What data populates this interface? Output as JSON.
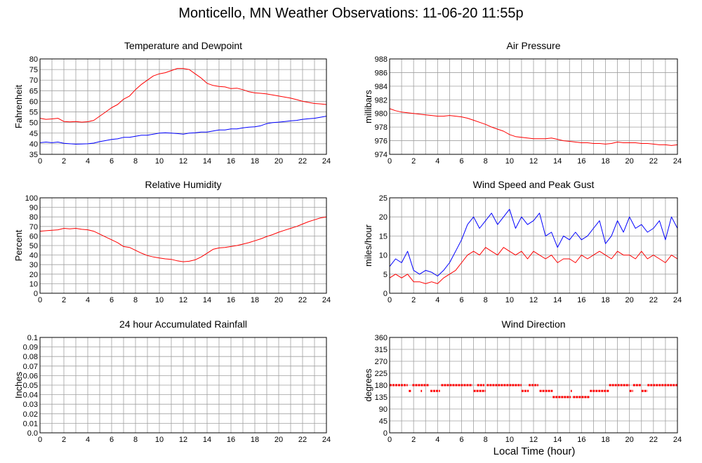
{
  "title": "Monticello, MN Weather Observations: 11-06-20 11:55p",
  "xlabel": "Local Time (hour)",
  "colors": {
    "red": "#ff0000",
    "blue": "#0000ff",
    "grid": "#a0a0a0"
  },
  "chart_data": [
    {
      "id": "temp",
      "type": "line",
      "title": "Temperature and Dewpoint",
      "ylabel": "Fahrenheit",
      "xlim": [
        0,
        24
      ],
      "ylim": [
        35,
        80
      ],
      "xticks": [
        0,
        2,
        4,
        6,
        8,
        10,
        12,
        14,
        16,
        18,
        20,
        22,
        24
      ],
      "yticks": [
        35,
        40,
        45,
        50,
        55,
        60,
        65,
        70,
        75,
        80
      ],
      "grid": true,
      "series": [
        {
          "color": "#ff0000",
          "x": [
            0,
            0.5,
            1,
            1.5,
            2,
            2.5,
            3,
            3.5,
            4,
            4.5,
            5,
            5.5,
            6,
            6.5,
            7,
            7.5,
            8,
            8.5,
            9,
            9.5,
            10,
            10.5,
            11,
            11.5,
            12,
            12.5,
            13,
            13.5,
            14,
            14.5,
            15,
            15.5,
            16,
            16.5,
            17,
            17.5,
            18,
            18.5,
            19,
            19.5,
            20,
            20.5,
            21,
            21.5,
            22,
            22.5,
            23,
            23.5,
            24
          ],
          "y": [
            52,
            51.5,
            51.7,
            52,
            50.5,
            50.3,
            50.5,
            50.2,
            50.4,
            51,
            53,
            55,
            57,
            58.5,
            61,
            62.5,
            65.5,
            68,
            70,
            72,
            73,
            73.5,
            74.5,
            75.5,
            75.5,
            75,
            73,
            71,
            68.5,
            67.5,
            67,
            66.8,
            66,
            66.2,
            65.5,
            64.5,
            64,
            63.8,
            63.5,
            63,
            62.5,
            62,
            61.5,
            60.8,
            60,
            59.5,
            59,
            58.8,
            58.5
          ]
        },
        {
          "color": "#0000ff",
          "x": [
            0,
            0.5,
            1,
            1.5,
            2,
            2.5,
            3,
            3.5,
            4,
            4.5,
            5,
            5.5,
            6,
            6.5,
            7,
            7.5,
            8,
            8.5,
            9,
            9.5,
            10,
            10.5,
            11,
            11.5,
            12,
            12.5,
            13,
            13.5,
            14,
            14.5,
            15,
            15.5,
            16,
            16.5,
            17,
            17.5,
            18,
            18.5,
            19,
            19.5,
            20,
            20.5,
            21,
            21.5,
            22,
            22.5,
            23,
            23.5,
            24
          ],
          "y": [
            40.5,
            40.8,
            40.5,
            40.8,
            40.2,
            40,
            39.8,
            39.9,
            40,
            40.3,
            41,
            41.5,
            42,
            42.3,
            43,
            43,
            43.5,
            44,
            44,
            44.5,
            45,
            45.2,
            45,
            44.8,
            44.5,
            45,
            45.2,
            45.5,
            45.5,
            46,
            46.5,
            46.5,
            47,
            47,
            47.5,
            47.8,
            48,
            48.5,
            49.5,
            50,
            50.2,
            50.5,
            50.8,
            51,
            51.5,
            51.8,
            52,
            52.5,
            53
          ]
        }
      ]
    },
    {
      "id": "pressure",
      "type": "line",
      "title": "Air Pressure",
      "ylabel": "millibars",
      "xlim": [
        0,
        24
      ],
      "ylim": [
        974,
        988
      ],
      "xticks": [
        0,
        2,
        4,
        6,
        8,
        10,
        12,
        14,
        16,
        18,
        20,
        22,
        24
      ],
      "yticks": [
        974,
        976,
        978,
        980,
        982,
        984,
        986,
        988
      ],
      "grid": true,
      "series": [
        {
          "color": "#ff0000",
          "x": [
            0,
            0.5,
            1,
            1.5,
            2,
            2.5,
            3,
            3.5,
            4,
            4.5,
            5,
            5.5,
            6,
            6.5,
            7,
            7.5,
            8,
            8.5,
            9,
            9.5,
            10,
            10.5,
            11,
            11.5,
            12,
            12.5,
            13,
            13.5,
            14,
            14.5,
            15,
            15.5,
            16,
            16.5,
            17,
            17.5,
            18,
            18.5,
            19,
            19.5,
            20,
            20.5,
            21,
            21.5,
            22,
            22.5,
            23,
            23.5,
            24
          ],
          "y": [
            980.7,
            980.4,
            980.2,
            980.1,
            980,
            979.9,
            979.8,
            979.7,
            979.6,
            979.6,
            979.7,
            979.6,
            979.5,
            979.3,
            979,
            978.7,
            978.4,
            978,
            977.7,
            977.4,
            976.9,
            976.6,
            976.5,
            976.4,
            976.3,
            976.3,
            976.3,
            976.4,
            976.2,
            976,
            975.9,
            975.8,
            975.7,
            975.7,
            975.6,
            975.6,
            975.5,
            975.6,
            975.8,
            975.7,
            975.7,
            975.7,
            975.6,
            975.6,
            975.5,
            975.4,
            975.4,
            975.3,
            975.4
          ]
        }
      ]
    },
    {
      "id": "humidity",
      "type": "line",
      "title": "Relative Humidity",
      "ylabel": "Percent",
      "xlim": [
        0,
        24
      ],
      "ylim": [
        0,
        100
      ],
      "xticks": [
        0,
        2,
        4,
        6,
        8,
        10,
        12,
        14,
        16,
        18,
        20,
        22,
        24
      ],
      "yticks": [
        0,
        10,
        20,
        30,
        40,
        50,
        60,
        70,
        80,
        90,
        100
      ],
      "grid": true,
      "series": [
        {
          "color": "#ff0000",
          "x": [
            0,
            0.5,
            1,
            1.5,
            2,
            2.5,
            3,
            3.5,
            4,
            4.5,
            5,
            5.5,
            6,
            6.5,
            7,
            7.5,
            8,
            8.5,
            9,
            9.5,
            10,
            10.5,
            11,
            11.5,
            12,
            12.5,
            13,
            13.5,
            14,
            14.5,
            15,
            15.5,
            16,
            16.5,
            17,
            17.5,
            18,
            18.5,
            19,
            19.5,
            20,
            20.5,
            21,
            21.5,
            22,
            22.5,
            23,
            23.5,
            24
          ],
          "y": [
            65,
            65.5,
            66,
            66.5,
            68,
            67.5,
            68,
            67,
            66.5,
            65,
            62,
            59,
            56,
            53,
            49,
            48,
            45,
            42,
            39.5,
            38,
            37,
            36,
            35.5,
            34,
            33,
            33.5,
            35,
            38,
            42,
            46,
            47.5,
            48,
            49,
            50,
            51.5,
            53,
            55,
            57,
            59.5,
            61.5,
            64,
            66,
            68,
            70,
            72.5,
            75,
            77,
            79,
            80
          ]
        }
      ]
    },
    {
      "id": "wind",
      "type": "line",
      "title": "Wind Speed and Peak Gust",
      "ylabel": "miles/hour",
      "xlim": [
        0,
        24
      ],
      "ylim": [
        0,
        25
      ],
      "xticks": [
        0,
        2,
        4,
        6,
        8,
        10,
        12,
        14,
        16,
        18,
        20,
        22,
        24
      ],
      "yticks": [
        0,
        5,
        10,
        15,
        20,
        25
      ],
      "grid": true,
      "series": [
        {
          "color": "#0000ff",
          "x": [
            0,
            0.5,
            1,
            1.5,
            2,
            2.5,
            3,
            3.5,
            4,
            4.5,
            5,
            5.5,
            6,
            6.5,
            7,
            7.5,
            8,
            8.5,
            9,
            9.5,
            10,
            10.5,
            11,
            11.5,
            12,
            12.5,
            13,
            13.5,
            14,
            14.5,
            15,
            15.5,
            16,
            16.5,
            17,
            17.5,
            18,
            18.5,
            19,
            19.5,
            20,
            20.5,
            21,
            21.5,
            22,
            22.5,
            23,
            23.5,
            24
          ],
          "y": [
            7,
            9,
            8,
            11,
            6,
            5,
            6,
            5.5,
            4.5,
            6,
            8,
            11,
            14,
            18,
            20,
            17,
            19,
            21,
            18,
            20,
            22,
            17,
            20,
            18,
            19,
            21,
            15,
            16,
            12,
            15,
            14,
            16,
            14,
            15,
            17,
            19,
            13,
            15,
            19,
            16,
            20,
            17,
            18,
            16,
            17,
            19,
            14,
            20,
            17
          ]
        },
        {
          "color": "#ff0000",
          "x": [
            0,
            0.5,
            1,
            1.5,
            2,
            2.5,
            3,
            3.5,
            4,
            4.5,
            5,
            5.5,
            6,
            6.5,
            7,
            7.5,
            8,
            8.5,
            9,
            9.5,
            10,
            10.5,
            11,
            11.5,
            12,
            12.5,
            13,
            13.5,
            14,
            14.5,
            15,
            15.5,
            16,
            16.5,
            17,
            17.5,
            18,
            18.5,
            19,
            19.5,
            20,
            20.5,
            21,
            21.5,
            22,
            22.5,
            23,
            23.5,
            24
          ],
          "y": [
            4,
            5,
            4,
            5,
            3,
            3,
            2.5,
            3,
            2.5,
            4,
            5,
            6,
            8,
            10,
            11,
            10,
            12,
            11,
            10,
            12,
            11,
            10,
            11,
            9,
            11,
            10,
            9,
            10,
            8,
            9,
            9,
            8,
            10,
            9,
            10,
            11,
            10,
            9,
            11,
            10,
            10,
            9,
            11,
            9,
            10,
            9,
            8,
            10,
            9
          ]
        }
      ]
    },
    {
      "id": "rain",
      "type": "line",
      "title": "24 hour Accumulated Rainfall",
      "ylabel": "Inches",
      "xlim": [
        0,
        24
      ],
      "ylim": [
        0,
        0.1
      ],
      "xticks": [
        0,
        2,
        4,
        6,
        8,
        10,
        12,
        14,
        16,
        18,
        20,
        22,
        24
      ],
      "yticks": [
        "0.0",
        "0.01",
        "0.02",
        "0.03",
        "0.04",
        "0.05",
        "0.06",
        "0.07",
        "0.08",
        "0.09",
        "0.1"
      ],
      "grid": true,
      "series": [
        {
          "color": "#ff0000",
          "x": [
            0,
            24
          ],
          "y": [
            0,
            0
          ]
        }
      ]
    },
    {
      "id": "direction",
      "type": "scatter",
      "title": "Wind Direction",
      "ylabel": "degrees",
      "xlim": [
        0,
        24
      ],
      "ylim": [
        0,
        360
      ],
      "xticks": [
        0,
        2,
        4,
        6,
        8,
        10,
        12,
        14,
        16,
        18,
        20,
        22,
        24
      ],
      "yticks": [
        0,
        45,
        90,
        135,
        180,
        225,
        270,
        315,
        360
      ],
      "grid": true,
      "series": [
        {
          "color": "#ff0000",
          "segments": [
            [
              0,
              1.5,
              180
            ],
            [
              1.6,
              1.8,
              158
            ],
            [
              1.9,
              3.3,
              180
            ],
            [
              2.6,
              2.7,
              158
            ],
            [
              3.4,
              4.2,
              158
            ],
            [
              4.3,
              6.9,
              180
            ],
            [
              7.0,
              8.0,
              158
            ],
            [
              7.3,
              7.9,
              180
            ],
            [
              8.1,
              11.0,
              180
            ],
            [
              11.0,
              11.6,
              158
            ],
            [
              11.6,
              12.4,
              180
            ],
            [
              12.5,
              13.6,
              158
            ],
            [
              13.6,
              15.1,
              135
            ],
            [
              15.1,
              15.2,
              158
            ],
            [
              15.3,
              16.7,
              135
            ],
            [
              16.7,
              18.3,
              158
            ],
            [
              18.3,
              20.0,
              180
            ],
            [
              20.0,
              20.3,
              158
            ],
            [
              20.3,
              21.0,
              180
            ],
            [
              21.0,
              21.5,
              158
            ],
            [
              21.5,
              24.0,
              180
            ]
          ]
        }
      ]
    }
  ]
}
